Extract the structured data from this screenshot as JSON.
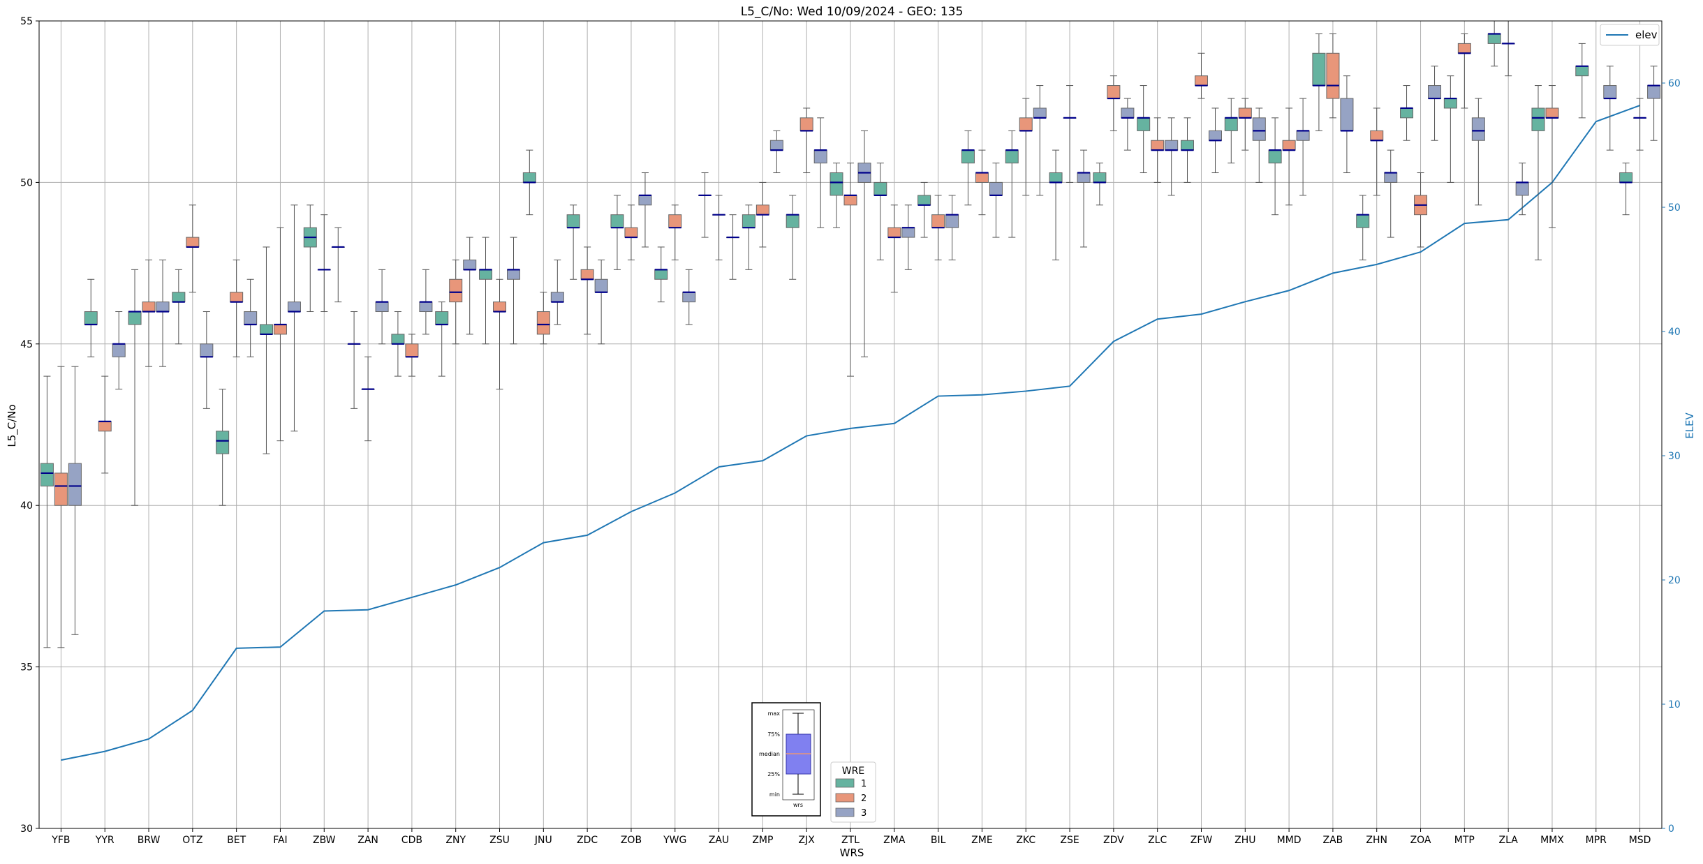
{
  "chart_data": {
    "type": "boxplot",
    "title": "L5_C/No: Wed 10/09/2024 - GEO: 135",
    "xlabel": "WRS",
    "ylabel": "L5_C/No",
    "ylabel_right": "ELEV",
    "ylim": [
      30,
      55
    ],
    "ylim_right": [
      0,
      65
    ],
    "yticks": [
      30,
      35,
      40,
      45,
      50,
      55
    ],
    "yticks_right": [
      0,
      10,
      20,
      30,
      40,
      50,
      60
    ],
    "grid": true,
    "categories": [
      "YFB",
      "YYR",
      "BRW",
      "OTZ",
      "BET",
      "FAI",
      "ZBW",
      "ZAN",
      "CDB",
      "ZNY",
      "ZSU",
      "JNU",
      "ZDC",
      "ZOB",
      "YWG",
      "ZAU",
      "ZMP",
      "ZJX",
      "ZTL",
      "ZMA",
      "BIL",
      "ZME",
      "ZKC",
      "ZSE",
      "ZDV",
      "ZLC",
      "ZFW",
      "ZHU",
      "MMD",
      "ZAB",
      "ZHN",
      "ZOA",
      "MTP",
      "ZLA",
      "MMX",
      "MPR",
      "MSD"
    ],
    "wre_legend": {
      "title": "WRE",
      "entries": [
        "1",
        "2",
        "3"
      ],
      "colors": [
        "#66b3a0",
        "#e8967a",
        "#96a3c4"
      ]
    },
    "elev_legend": {
      "label": "elev",
      "color": "#1f77b4"
    },
    "inset_legend": {
      "labels": [
        "max",
        "75%",
        "median",
        "25%",
        "min"
      ],
      "xlabel": "wrs"
    },
    "boxes": [
      {
        "wrs": "YFB",
        "wre": 1,
        "min": 35.6,
        "q1": 40.6,
        "med": 41.0,
        "q3": 41.3,
        "max": 44.0
      },
      {
        "wrs": "YFB",
        "wre": 2,
        "min": 35.6,
        "q1": 40.0,
        "med": 40.6,
        "q3": 41.0,
        "max": 44.3
      },
      {
        "wrs": "YFB",
        "wre": 3,
        "min": 36.0,
        "q1": 40.0,
        "med": 40.6,
        "q3": 41.3,
        "max": 44.3
      },
      {
        "wrs": "YYR",
        "wre": 1,
        "min": 44.6,
        "q1": 45.6,
        "med": 45.6,
        "q3": 46.0,
        "max": 47.0
      },
      {
        "wrs": "YYR",
        "wre": 2,
        "min": 41.0,
        "q1": 42.3,
        "med": 42.6,
        "q3": 42.6,
        "max": 44.0
      },
      {
        "wrs": "YYR",
        "wre": 3,
        "min": 43.6,
        "q1": 44.6,
        "med": 45.0,
        "q3": 45.0,
        "max": 46.0
      },
      {
        "wrs": "BRW",
        "wre": 1,
        "min": 40.0,
        "q1": 45.6,
        "med": 46.0,
        "q3": 46.0,
        "max": 47.3
      },
      {
        "wrs": "BRW",
        "wre": 2,
        "min": 44.3,
        "q1": 46.0,
        "med": 46.0,
        "q3": 46.3,
        "max": 47.6
      },
      {
        "wrs": "BRW",
        "wre": 3,
        "min": 44.3,
        "q1": 46.0,
        "med": 46.0,
        "q3": 46.3,
        "max": 47.6
      },
      {
        "wrs": "OTZ",
        "wre": 1,
        "min": 45.0,
        "q1": 46.3,
        "med": 46.3,
        "q3": 46.6,
        "max": 47.3
      },
      {
        "wrs": "OTZ",
        "wre": 2,
        "min": 46.6,
        "q1": 48.0,
        "med": 48.0,
        "q3": 48.3,
        "max": 49.3
      },
      {
        "wrs": "OTZ",
        "wre": 3,
        "min": 43.0,
        "q1": 44.6,
        "med": 44.6,
        "q3": 45.0,
        "max": 46.0
      },
      {
        "wrs": "BET",
        "wre": 1,
        "min": 40.0,
        "q1": 41.6,
        "med": 42.0,
        "q3": 42.3,
        "max": 43.6
      },
      {
        "wrs": "BET",
        "wre": 2,
        "min": 44.6,
        "q1": 46.3,
        "med": 46.3,
        "q3": 46.6,
        "max": 47.6
      },
      {
        "wrs": "BET",
        "wre": 3,
        "min": 44.6,
        "q1": 45.6,
        "med": 45.6,
        "q3": 46.0,
        "max": 47.0
      },
      {
        "wrs": "FAI",
        "wre": 1,
        "min": 41.6,
        "q1": 45.3,
        "med": 45.3,
        "q3": 45.6,
        "max": 48.0
      },
      {
        "wrs": "FAI",
        "wre": 2,
        "min": 42.0,
        "q1": 45.3,
        "med": 45.6,
        "q3": 45.6,
        "max": 48.6
      },
      {
        "wrs": "FAI",
        "wre": 3,
        "min": 42.3,
        "q1": 46.0,
        "med": 46.0,
        "q3": 46.3,
        "max": 49.3
      },
      {
        "wrs": "ZBW",
        "wre": 1,
        "min": 46.0,
        "q1": 48.0,
        "med": 48.3,
        "q3": 48.6,
        "max": 49.3
      },
      {
        "wrs": "ZBW",
        "wre": 2,
        "min": 46.0,
        "q1": 47.3,
        "med": 47.3,
        "q3": 47.3,
        "max": 49.0
      },
      {
        "wrs": "ZBW",
        "wre": 3,
        "min": 46.3,
        "q1": 48.0,
        "med": 48.0,
        "q3": 48.0,
        "max": 48.6
      },
      {
        "wrs": "ZAN",
        "wre": 2,
        "min": 42.0,
        "q1": 43.6,
        "med": 43.6,
        "q3": 43.6,
        "max": 44.6
      },
      {
        "wrs": "ZAN",
        "wre": 1,
        "min": 43.0,
        "q1": 45.0,
        "med": 45.0,
        "q3": 45.0,
        "max": 46.0
      },
      {
        "wrs": "ZAN",
        "wre": 3,
        "min": 45.0,
        "q1": 46.0,
        "med": 46.3,
        "q3": 46.3,
        "max": 47.3
      },
      {
        "wrs": "CDB",
        "wre": 1,
        "min": 44.0,
        "q1": 45.0,
        "med": 45.0,
        "q3": 45.3,
        "max": 46.0
      },
      {
        "wrs": "CDB",
        "wre": 2,
        "min": 44.0,
        "q1": 44.6,
        "med": 44.6,
        "q3": 45.0,
        "max": 45.3
      },
      {
        "wrs": "CDB",
        "wre": 3,
        "min": 45.3,
        "q1": 46.0,
        "med": 46.3,
        "q3": 46.3,
        "max": 47.3
      },
      {
        "wrs": "ZNY",
        "wre": 1,
        "min": 44.0,
        "q1": 45.6,
        "med": 45.6,
        "q3": 46.0,
        "max": 46.3
      },
      {
        "wrs": "ZNY",
        "wre": 2,
        "min": 45.0,
        "q1": 46.3,
        "med": 46.6,
        "q3": 47.0,
        "max": 47.6
      },
      {
        "wrs": "ZNY",
        "wre": 3,
        "min": 45.3,
        "q1": 47.3,
        "med": 47.3,
        "q3": 47.6,
        "max": 48.3
      },
      {
        "wrs": "ZSU",
        "wre": 1,
        "min": 45.0,
        "q1": 47.0,
        "med": 47.3,
        "q3": 47.3,
        "max": 48.3
      },
      {
        "wrs": "ZSU",
        "wre": 2,
        "min": 43.6,
        "q1": 46.0,
        "med": 46.0,
        "q3": 46.3,
        "max": 47.0
      },
      {
        "wrs": "ZSU",
        "wre": 3,
        "min": 45.0,
        "q1": 47.0,
        "med": 47.3,
        "q3": 47.3,
        "max": 48.3
      },
      {
        "wrs": "JNU",
        "wre": 1,
        "min": 49.0,
        "q1": 50.0,
        "med": 50.0,
        "q3": 50.3,
        "max": 51.0
      },
      {
        "wrs": "JNU",
        "wre": 2,
        "min": 45.0,
        "q1": 45.3,
        "med": 45.6,
        "q3": 46.0,
        "max": 46.6
      },
      {
        "wrs": "JNU",
        "wre": 3,
        "min": 45.6,
        "q1": 46.3,
        "med": 46.3,
        "q3": 46.6,
        "max": 47.6
      },
      {
        "wrs": "ZDC",
        "wre": 1,
        "min": 47.0,
        "q1": 48.6,
        "med": 48.6,
        "q3": 49.0,
        "max": 49.3
      },
      {
        "wrs": "ZDC",
        "wre": 2,
        "min": 45.3,
        "q1": 47.0,
        "med": 47.0,
        "q3": 47.3,
        "max": 48.0
      },
      {
        "wrs": "ZDC",
        "wre": 3,
        "min": 45.0,
        "q1": 46.6,
        "med": 46.6,
        "q3": 47.0,
        "max": 47.6
      },
      {
        "wrs": "ZOB",
        "wre": 1,
        "min": 47.3,
        "q1": 48.6,
        "med": 48.6,
        "q3": 49.0,
        "max": 49.6
      },
      {
        "wrs": "ZOB",
        "wre": 2,
        "min": 47.6,
        "q1": 48.3,
        "med": 48.3,
        "q3": 48.6,
        "max": 49.3
      },
      {
        "wrs": "ZOB",
        "wre": 3,
        "min": 48.0,
        "q1": 49.3,
        "med": 49.6,
        "q3": 49.6,
        "max": 50.3
      },
      {
        "wrs": "YWG",
        "wre": 1,
        "min": 46.3,
        "q1": 47.0,
        "med": 47.3,
        "q3": 47.3,
        "max": 48.0
      },
      {
        "wrs": "YWG",
        "wre": 2,
        "min": 47.6,
        "q1": 48.6,
        "med": 48.6,
        "q3": 49.0,
        "max": 49.3
      },
      {
        "wrs": "YWG",
        "wre": 3,
        "min": 45.6,
        "q1": 46.3,
        "med": 46.6,
        "q3": 46.6,
        "max": 47.3
      },
      {
        "wrs": "ZAU",
        "wre": 2,
        "min": 47.6,
        "q1": 49.0,
        "med": 49.0,
        "q3": 49.0,
        "max": 49.6
      },
      {
        "wrs": "ZAU",
        "wre": 1,
        "min": 48.3,
        "q1": 49.6,
        "med": 49.6,
        "q3": 49.6,
        "max": 50.3
      },
      {
        "wrs": "ZAU",
        "wre": 3,
        "min": 47.0,
        "q1": 48.3,
        "med": 48.3,
        "q3": 48.3,
        "max": 49.0
      },
      {
        "wrs": "ZMP",
        "wre": 1,
        "min": 47.3,
        "q1": 48.6,
        "med": 48.6,
        "q3": 49.0,
        "max": 49.3
      },
      {
        "wrs": "ZMP",
        "wre": 2,
        "min": 48.0,
        "q1": 49.0,
        "med": 49.0,
        "q3": 49.3,
        "max": 50.0
      },
      {
        "wrs": "ZMP",
        "wre": 3,
        "min": 50.3,
        "q1": 51.0,
        "med": 51.0,
        "q3": 51.3,
        "max": 51.6
      },
      {
        "wrs": "ZJX",
        "wre": 1,
        "min": 47.0,
        "q1": 48.6,
        "med": 49.0,
        "q3": 49.0,
        "max": 49.6
      },
      {
        "wrs": "ZJX",
        "wre": 2,
        "min": 50.3,
        "q1": 51.6,
        "med": 51.6,
        "q3": 52.0,
        "max": 52.3
      },
      {
        "wrs": "ZJX",
        "wre": 3,
        "min": 48.6,
        "q1": 50.6,
        "med": 51.0,
        "q3": 51.0,
        "max": 52.0
      },
      {
        "wrs": "ZTL",
        "wre": 1,
        "min": 48.6,
        "q1": 49.6,
        "med": 50.0,
        "q3": 50.3,
        "max": 50.6
      },
      {
        "wrs": "ZTL",
        "wre": 2,
        "min": 44.0,
        "q1": 49.3,
        "med": 49.6,
        "q3": 49.6,
        "max": 50.6
      },
      {
        "wrs": "ZTL",
        "wre": 3,
        "min": 44.6,
        "q1": 50.0,
        "med": 50.3,
        "q3": 50.6,
        "max": 51.6
      },
      {
        "wrs": "ZMA",
        "wre": 1,
        "min": 47.6,
        "q1": 49.6,
        "med": 49.6,
        "q3": 50.0,
        "max": 50.6
      },
      {
        "wrs": "ZMA",
        "wre": 2,
        "min": 46.6,
        "q1": 48.3,
        "med": 48.3,
        "q3": 48.6,
        "max": 49.3
      },
      {
        "wrs": "ZMA",
        "wre": 3,
        "min": 47.3,
        "q1": 48.3,
        "med": 48.6,
        "q3": 48.6,
        "max": 49.3
      },
      {
        "wrs": "BIL",
        "wre": 1,
        "min": 48.3,
        "q1": 49.3,
        "med": 49.3,
        "q3": 49.6,
        "max": 50.0
      },
      {
        "wrs": "BIL",
        "wre": 2,
        "min": 47.6,
        "q1": 48.6,
        "med": 48.6,
        "q3": 49.0,
        "max": 49.6
      },
      {
        "wrs": "BIL",
        "wre": 3,
        "min": 47.6,
        "q1": 48.6,
        "med": 49.0,
        "q3": 49.0,
        "max": 49.6
      },
      {
        "wrs": "ZME",
        "wre": 1,
        "min": 49.3,
        "q1": 50.6,
        "med": 51.0,
        "q3": 51.0,
        "max": 51.6
      },
      {
        "wrs": "ZME",
        "wre": 2,
        "min": 49.0,
        "q1": 50.0,
        "med": 50.3,
        "q3": 50.3,
        "max": 51.0
      },
      {
        "wrs": "ZME",
        "wre": 3,
        "min": 48.3,
        "q1": 49.6,
        "med": 49.6,
        "q3": 50.0,
        "max": 50.6
      },
      {
        "wrs": "ZKC",
        "wre": 1,
        "min": 48.3,
        "q1": 50.6,
        "med": 51.0,
        "q3": 51.0,
        "max": 51.6
      },
      {
        "wrs": "ZKC",
        "wre": 2,
        "min": 49.6,
        "q1": 51.6,
        "med": 51.6,
        "q3": 52.0,
        "max": 52.6
      },
      {
        "wrs": "ZKC",
        "wre": 3,
        "min": 49.6,
        "q1": 52.0,
        "med": 52.0,
        "q3": 52.3,
        "max": 53.0
      },
      {
        "wrs": "ZSE",
        "wre": 1,
        "min": 47.6,
        "q1": 50.0,
        "med": 50.0,
        "q3": 50.3,
        "max": 51.0
      },
      {
        "wrs": "ZSE",
        "wre": 2,
        "min": 50.0,
        "q1": 52.0,
        "med": 52.0,
        "q3": 52.0,
        "max": 53.0
      },
      {
        "wrs": "ZSE",
        "wre": 3,
        "min": 48.0,
        "q1": 50.0,
        "med": 50.3,
        "q3": 50.3,
        "max": 51.0
      },
      {
        "wrs": "ZDV",
        "wre": 1,
        "min": 49.3,
        "q1": 50.0,
        "med": 50.0,
        "q3": 50.3,
        "max": 50.6
      },
      {
        "wrs": "ZDV",
        "wre": 2,
        "min": 51.6,
        "q1": 52.6,
        "med": 52.6,
        "q3": 53.0,
        "max": 53.3
      },
      {
        "wrs": "ZDV",
        "wre": 3,
        "min": 51.0,
        "q1": 52.0,
        "med": 52.0,
        "q3": 52.3,
        "max": 52.6
      },
      {
        "wrs": "ZLC",
        "wre": 1,
        "min": 50.3,
        "q1": 51.6,
        "med": 52.0,
        "q3": 52.0,
        "max": 53.0
      },
      {
        "wrs": "ZLC",
        "wre": 2,
        "min": 50.0,
        "q1": 51.0,
        "med": 51.0,
        "q3": 51.3,
        "max": 52.0
      },
      {
        "wrs": "ZLC",
        "wre": 3,
        "min": 49.6,
        "q1": 51.0,
        "med": 51.0,
        "q3": 51.3,
        "max": 52.0
      },
      {
        "wrs": "ZFW",
        "wre": 1,
        "min": 50.0,
        "q1": 51.0,
        "med": 51.0,
        "q3": 51.3,
        "max": 52.0
      },
      {
        "wrs": "ZFW",
        "wre": 2,
        "min": 52.6,
        "q1": 53.0,
        "med": 53.0,
        "q3": 53.3,
        "max": 54.0
      },
      {
        "wrs": "ZFW",
        "wre": 3,
        "min": 50.3,
        "q1": 51.3,
        "med": 51.3,
        "q3": 51.6,
        "max": 52.3
      },
      {
        "wrs": "ZHU",
        "wre": 1,
        "min": 50.6,
        "q1": 51.6,
        "med": 52.0,
        "q3": 52.0,
        "max": 52.6
      },
      {
        "wrs": "ZHU",
        "wre": 2,
        "min": 51.0,
        "q1": 52.0,
        "med": 52.0,
        "q3": 52.3,
        "max": 52.6
      },
      {
        "wrs": "ZHU",
        "wre": 3,
        "min": 50.0,
        "q1": 51.3,
        "med": 51.6,
        "q3": 52.0,
        "max": 52.3
      },
      {
        "wrs": "MMD",
        "wre": 1,
        "min": 49.0,
        "q1": 50.6,
        "med": 51.0,
        "q3": 51.0,
        "max": 52.0
      },
      {
        "wrs": "MMD",
        "wre": 2,
        "min": 49.3,
        "q1": 51.0,
        "med": 51.0,
        "q3": 51.3,
        "max": 52.3
      },
      {
        "wrs": "MMD",
        "wre": 3,
        "min": 49.6,
        "q1": 51.3,
        "med": 51.6,
        "q3": 51.6,
        "max": 52.6
      },
      {
        "wrs": "ZAB",
        "wre": 1,
        "min": 51.6,
        "q1": 53.0,
        "med": 53.0,
        "q3": 54.0,
        "max": 54.6
      },
      {
        "wrs": "ZAB",
        "wre": 2,
        "min": 52.0,
        "q1": 52.6,
        "med": 53.0,
        "q3": 54.0,
        "max": 54.6
      },
      {
        "wrs": "ZAB",
        "wre": 3,
        "min": 50.3,
        "q1": 51.6,
        "med": 51.6,
        "q3": 52.6,
        "max": 53.3
      },
      {
        "wrs": "ZHN",
        "wre": 1,
        "min": 47.6,
        "q1": 48.6,
        "med": 49.0,
        "q3": 49.0,
        "max": 49.6
      },
      {
        "wrs": "ZHN",
        "wre": 2,
        "min": 49.6,
        "q1": 51.3,
        "med": 51.3,
        "q3": 51.6,
        "max": 52.3
      },
      {
        "wrs": "ZHN",
        "wre": 3,
        "min": 48.3,
        "q1": 50.0,
        "med": 50.3,
        "q3": 50.3,
        "max": 51.0
      },
      {
        "wrs": "ZOA",
        "wre": 1,
        "min": 51.3,
        "q1": 52.0,
        "med": 52.3,
        "q3": 52.3,
        "max": 53.0
      },
      {
        "wrs": "ZOA",
        "wre": 2,
        "min": 48.0,
        "q1": 49.0,
        "med": 49.3,
        "q3": 49.6,
        "max": 50.3
      },
      {
        "wrs": "ZOA",
        "wre": 3,
        "min": 51.3,
        "q1": 52.6,
        "med": 52.6,
        "q3": 53.0,
        "max": 53.6
      },
      {
        "wrs": "MTP",
        "wre": 1,
        "min": 50.0,
        "q1": 52.3,
        "med": 52.6,
        "q3": 52.6,
        "max": 53.3
      },
      {
        "wrs": "MTP",
        "wre": 2,
        "min": 52.3,
        "q1": 54.0,
        "med": 54.0,
        "q3": 54.3,
        "max": 54.6
      },
      {
        "wrs": "MTP",
        "wre": 3,
        "min": 49.3,
        "q1": 51.3,
        "med": 51.6,
        "q3": 52.0,
        "max": 52.6
      },
      {
        "wrs": "ZLA",
        "wre": 1,
        "min": 53.6,
        "q1": 54.3,
        "med": 54.6,
        "q3": 54.6,
        "max": 55.0
      },
      {
        "wrs": "ZLA",
        "wre": 2,
        "min": 53.3,
        "q1": 54.3,
        "med": 54.3,
        "q3": 54.3,
        "max": 55.0
      },
      {
        "wrs": "ZLA",
        "wre": 3,
        "min": 49.0,
        "q1": 49.6,
        "med": 50.0,
        "q3": 50.0,
        "max": 50.6
      },
      {
        "wrs": "MMX",
        "wre": 1,
        "min": 47.6,
        "q1": 51.6,
        "med": 52.0,
        "q3": 52.3,
        "max": 53.0
      },
      {
        "wrs": "MMX",
        "wre": 2,
        "min": 48.6,
        "q1": 52.0,
        "med": 52.0,
        "q3": 52.3,
        "max": 53.0
      },
      {
        "wrs": "MPR",
        "wre": 1,
        "min": 52.0,
        "q1": 53.3,
        "med": 53.6,
        "q3": 53.6,
        "max": 54.3
      },
      {
        "wrs": "MPR",
        "wre": 3,
        "min": 51.0,
        "q1": 52.6,
        "med": 52.6,
        "q3": 53.0,
        "max": 53.6
      },
      {
        "wrs": "MSD",
        "wre": 1,
        "min": 49.0,
        "q1": 50.0,
        "med": 50.0,
        "q3": 50.3,
        "max": 50.6
      },
      {
        "wrs": "MSD",
        "wre": 2,
        "min": 51.0,
        "q1": 52.0,
        "med": 52.0,
        "q3": 52.0,
        "max": 52.6
      },
      {
        "wrs": "MSD",
        "wre": 3,
        "min": 51.3,
        "q1": 52.6,
        "med": 53.0,
        "q3": 53.0,
        "max": 53.6
      }
    ],
    "elev": [
      5.5,
      6.2,
      7.2,
      9.5,
      14.5,
      14.6,
      17.5,
      17.6,
      18.6,
      19.6,
      21.0,
      23.0,
      23.6,
      25.5,
      27.0,
      29.1,
      29.6,
      31.6,
      32.2,
      32.6,
      34.8,
      34.9,
      35.2,
      35.6,
      39.2,
      41.0,
      41.4,
      42.4,
      43.3,
      44.7,
      45.4,
      46.4,
      48.7,
      49.0,
      52.0,
      56.9,
      58.2
    ]
  }
}
